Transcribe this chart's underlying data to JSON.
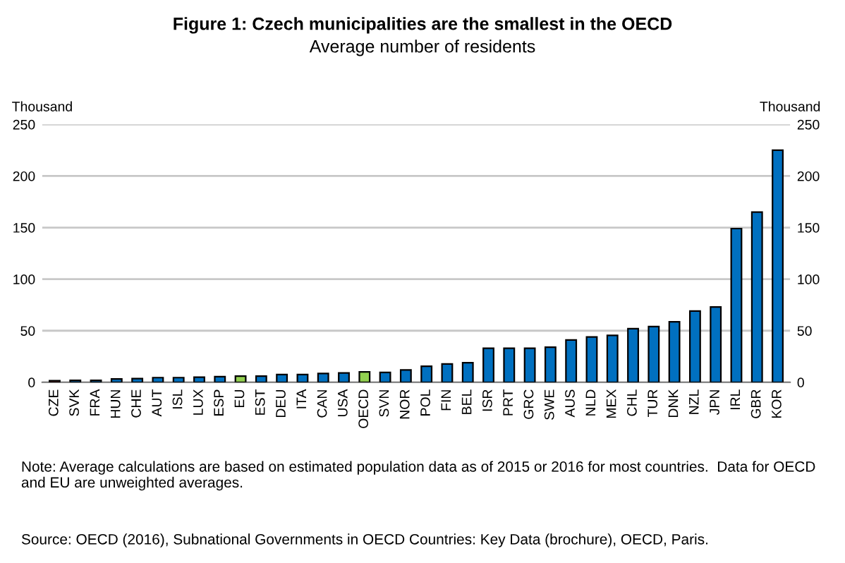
{
  "chart_data": {
    "type": "bar",
    "title": "Figure 1: Czech municipalities are the smallest in the OECD",
    "subtitle": "Average number of residents",
    "ylabel": "Thousand",
    "y2label": "Thousand",
    "categories": [
      "CZE",
      "SVK",
      "FRA",
      "HUN",
      "CHE",
      "AUT",
      "ISL",
      "LUX",
      "ESP",
      "EU",
      "EST",
      "DEU",
      "ITA",
      "CAN",
      "USA",
      "OECD",
      "SVN",
      "NOR",
      "POL",
      "FIN",
      "BEL",
      "ISR",
      "PRT",
      "GRC",
      "SWE",
      "AUS",
      "NLD",
      "MEX",
      "CHL",
      "TUR",
      "DNK",
      "NZL",
      "JPN",
      "IRL",
      "GBR",
      "KOR"
    ],
    "values": [
      1.6,
      1.8,
      1.8,
      3.2,
      3.5,
      4.5,
      4.5,
      5,
      5.5,
      6,
      6,
      7.5,
      7.5,
      8.5,
      9,
      10,
      9.5,
      12,
      15.5,
      17.7,
      19,
      33,
      33,
      33,
      34,
      41,
      44,
      45.5,
      52,
      54,
      58.7,
      69,
      73,
      149,
      165,
      225
    ],
    "colors": [
      "#7f2a2a",
      "#0070c0",
      "#0070c0",
      "#0070c0",
      "#0070c0",
      "#0070c0",
      "#0070c0",
      "#0070c0",
      "#0070c0",
      "#92d050",
      "#0070c0",
      "#0070c0",
      "#0070c0",
      "#0070c0",
      "#0070c0",
      "#92d050",
      "#0070c0",
      "#0070c0",
      "#0070c0",
      "#0070c0",
      "#0070c0",
      "#0070c0",
      "#0070c0",
      "#0070c0",
      "#0070c0",
      "#0070c0",
      "#0070c0",
      "#0070c0",
      "#0070c0",
      "#0070c0",
      "#0070c0",
      "#0070c0",
      "#0070c0",
      "#0070c0",
      "#0070c0",
      "#0070c0"
    ],
    "ylim": [
      0,
      250
    ],
    "yticks": [
      0,
      50,
      100,
      150,
      200,
      250
    ],
    "y2lim": [
      0,
      250
    ],
    "y2ticks": [
      0,
      50,
      100,
      150,
      200,
      250
    ],
    "grid": "y",
    "annotations": [
      "Note: Average calculations are based on estimated population data as of 2015 or 2016 for most countries.  Data for OECD and EU are unweighted averages.",
      "Source: OECD (2016), Subnational Governments in OECD Countries: Key Data (brochure), OECD, Paris."
    ]
  }
}
